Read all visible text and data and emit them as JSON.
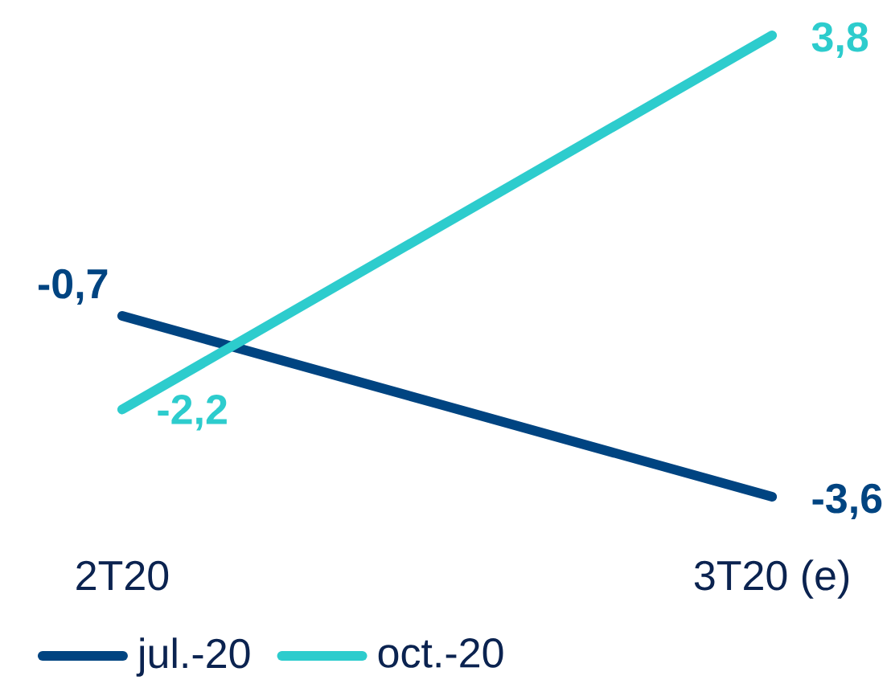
{
  "chart_data": {
    "type": "line",
    "categories": [
      "2T20",
      "3T20 (e)"
    ],
    "series": [
      {
        "name": "jul.-20",
        "color": "#004481",
        "values": [
          -0.7,
          -3.6
        ],
        "value_labels": [
          "-0,7",
          "-3,6"
        ]
      },
      {
        "name": "oct.-20",
        "color": "#2dcccd",
        "values": [
          -2.2,
          3.8
        ],
        "value_labels": [
          "-2,2",
          "3,8"
        ]
      }
    ],
    "legend": "bottom",
    "marker": "none",
    "line_style": "solid"
  }
}
